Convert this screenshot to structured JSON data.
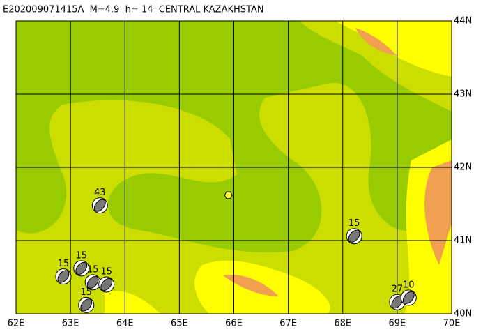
{
  "map": {
    "title": "E202009071415A  M=4.9  h= 14  CENTRAL KAZAKHSTAN",
    "xlim": [
      62,
      70
    ],
    "ylim": [
      40,
      44
    ],
    "xticks": [
      {
        "value": 62,
        "label": "62E"
      },
      {
        "value": 63,
        "label": "63E"
      },
      {
        "value": 64,
        "label": "64E"
      },
      {
        "value": 65,
        "label": "65E"
      },
      {
        "value": 66,
        "label": "66E"
      },
      {
        "value": 67,
        "label": "67E"
      },
      {
        "value": 68,
        "label": "68E"
      },
      {
        "value": 69,
        "label": "69E"
      },
      {
        "value": 70,
        "label": "70E"
      }
    ],
    "yticks": [
      {
        "value": 40,
        "label": "40N"
      },
      {
        "value": 41,
        "label": "41N"
      },
      {
        "value": 42,
        "label": "42N"
      },
      {
        "value": 43,
        "label": "43N"
      },
      {
        "value": 44,
        "label": "44N"
      }
    ],
    "epicenter": {
      "lon": 65.9,
      "lat": 41.62
    },
    "events": [
      {
        "lon": 63.54,
        "lat": 41.48,
        "depth": 43
      },
      {
        "lon": 68.21,
        "lat": 41.06,
        "depth": 15
      },
      {
        "lon": 62.87,
        "lat": 40.51,
        "depth": 15
      },
      {
        "lon": 63.2,
        "lat": 40.62,
        "depth": 15
      },
      {
        "lon": 63.41,
        "lat": 40.43,
        "depth": 15
      },
      {
        "lon": 63.66,
        "lat": 40.4,
        "depth": 15
      },
      {
        "lon": 63.29,
        "lat": 40.12,
        "depth": 15
      },
      {
        "lon": 69.0,
        "lat": 40.16,
        "depth": 27
      },
      {
        "lon": 69.21,
        "lat": 40.22,
        "depth": 10
      }
    ]
  }
}
